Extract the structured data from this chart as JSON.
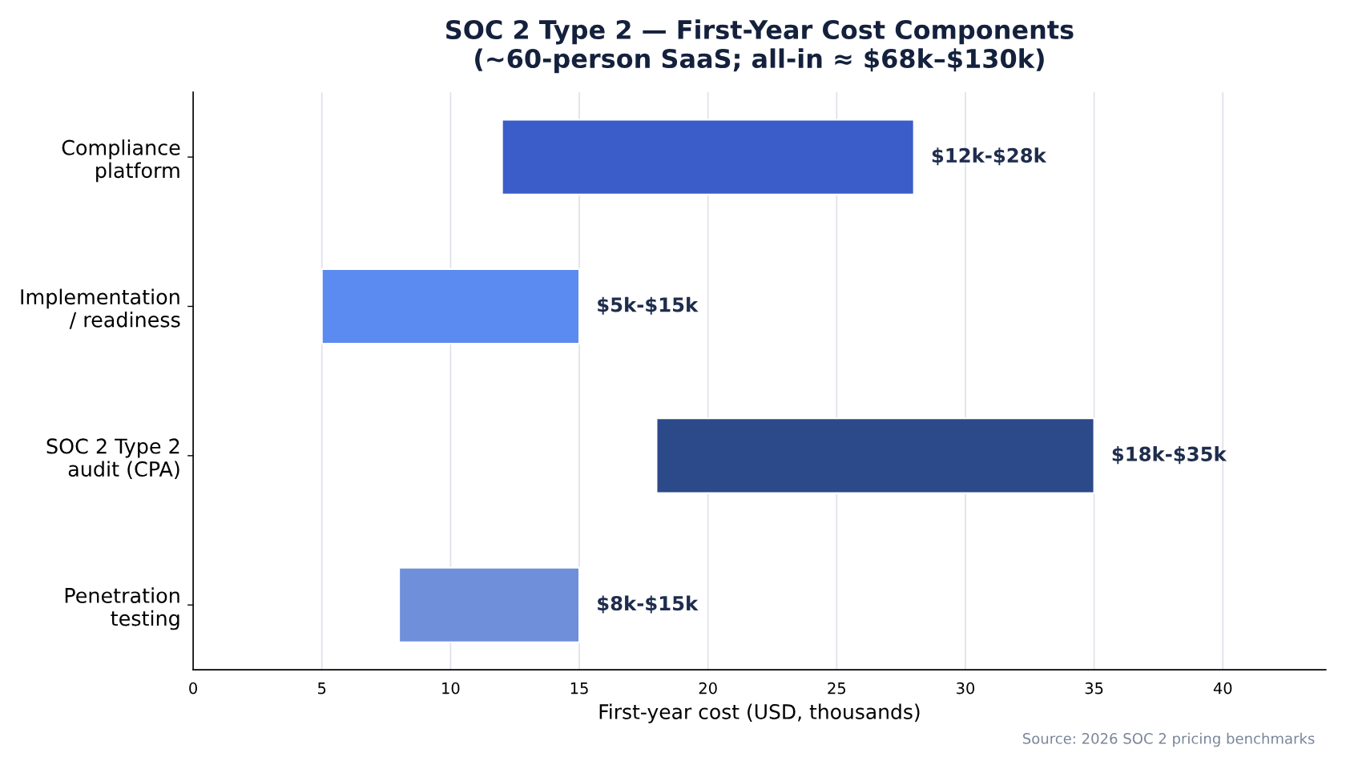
{
  "chart_data": {
    "type": "bar",
    "orientation": "horizontal",
    "title": "SOC 2 Type 2 — First-Year Cost Components\n(~60-person SaaS; all-in ≈ $68k–$130k)",
    "xlabel": "First-year cost (USD, thousands)",
    "categories": [
      "Compliance\nplatform",
      "Implementation\n/ readiness",
      "SOC 2 Type 2\naudit (CPA)",
      "Penetration\ntesting"
    ],
    "base": [
      12,
      5,
      18,
      8
    ],
    "values": [
      16,
      10,
      17,
      7
    ],
    "colors": [
      "#3b5dc9",
      "#5b8bf0",
      "#2c4a8a",
      "#6f8fda"
    ],
    "xlim": [
      0,
      44
    ],
    "xticks": [
      0,
      5,
      10,
      15,
      20,
      25,
      30,
      35,
      40
    ],
    "grid": "x",
    "annotations": [
      {
        "text": "$12k-$28k",
        "x": 28,
        "y": "Compliance\nplatform"
      },
      {
        "text": "$5k-$15k",
        "x": 15,
        "y": "Implementation\n/ readiness"
      },
      {
        "text": "$18k-$35k",
        "x": 35,
        "y": "SOC 2 Type 2\naudit (CPA)"
      },
      {
        "text": "$8k-$15k",
        "x": 15,
        "y": "Penetration\ntesting"
      },
      "Source: 2026 SOC 2 pricing benchmarks"
    ]
  }
}
